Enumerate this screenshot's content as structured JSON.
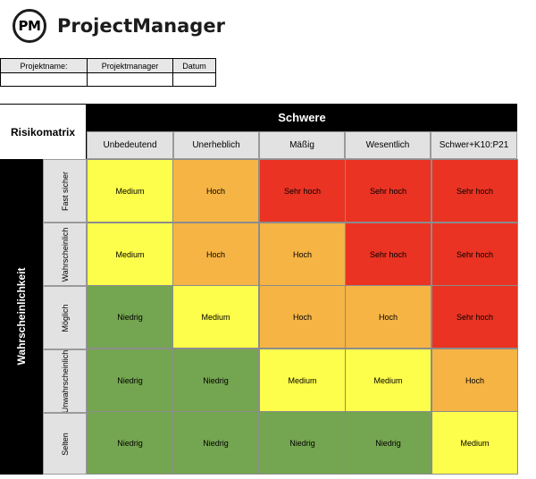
{
  "brand": {
    "logo_initials": "PM",
    "name": "ProjectManager"
  },
  "project_table": {
    "headers": [
      "Projektname:",
      "Projektmanager",
      "Datum"
    ],
    "values": [
      "",
      "",
      ""
    ]
  },
  "matrix": {
    "title": "Risikomatrix",
    "severity_title": "Schwere",
    "likelihood_title": "Wahrscheinlichkeit",
    "severity_levels": [
      "Unbedeutend",
      "Unerheblich",
      "Mäßig",
      "Wesentlich",
      "Schwer+K10:P21"
    ],
    "likelihood_levels": [
      "Fast sicher",
      "Wahrscheinlich",
      "Möglich",
      "Unwahrscheinlich",
      "Selten"
    ],
    "cells": [
      [
        "Medium",
        "Hoch",
        "Sehr hoch",
        "Sehr hoch",
        "Sehr hoch"
      ],
      [
        "Medium",
        "Hoch",
        "Hoch",
        "Sehr hoch",
        "Sehr hoch"
      ],
      [
        "Niedrig",
        "Medium",
        "Hoch",
        "Hoch",
        "Sehr hoch"
      ],
      [
        "Niedrig",
        "Niedrig",
        "Medium",
        "Medium",
        "Hoch"
      ],
      [
        "Niedrig",
        "Niedrig",
        "Niedrig",
        "Niedrig",
        "Medium"
      ]
    ],
    "level_colors": {
      "Niedrig": "#74a550",
      "Medium": "#fdfd4b",
      "Hoch": "#f6b444",
      "Sehr hoch": "#ea3323"
    }
  }
}
